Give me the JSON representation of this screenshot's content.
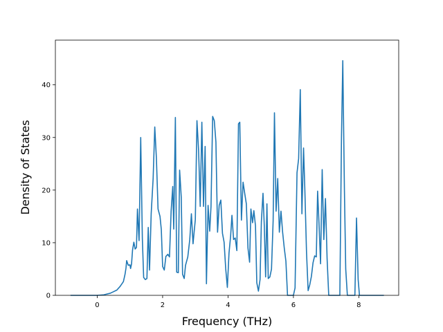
{
  "chart_data": {
    "type": "line",
    "title": "",
    "xlabel": "Frequency (THz)",
    "ylabel": "Density of States",
    "xlim": [
      -1.28,
      9.22
    ],
    "ylim": [
      0,
      48.5
    ],
    "x_ticks": [
      0,
      2,
      4,
      6,
      8
    ],
    "y_ticks": [
      0,
      10,
      20,
      30,
      40
    ],
    "grid": false,
    "legend": "none",
    "series": [
      {
        "color": "#1f77b4",
        "points": [
          [
            -0.8,
            0
          ],
          [
            -0.4,
            0
          ],
          [
            0.0,
            0
          ],
          [
            0.2,
            0.1
          ],
          [
            0.4,
            0.4
          ],
          [
            0.5,
            0.7
          ],
          [
            0.6,
            1.0
          ],
          [
            0.7,
            1.7
          ],
          [
            0.8,
            2.6
          ],
          [
            0.85,
            4.0
          ],
          [
            0.88,
            5.2
          ],
          [
            0.9,
            6.6
          ],
          [
            0.95,
            5.7
          ],
          [
            1.0,
            5.8
          ],
          [
            1.02,
            5.1
          ],
          [
            1.05,
            6.0
          ],
          [
            1.08,
            8.6
          ],
          [
            1.12,
            10.1
          ],
          [
            1.16,
            8.8
          ],
          [
            1.2,
            9.1
          ],
          [
            1.23,
            16.4
          ],
          [
            1.28,
            10.4
          ],
          [
            1.33,
            30.0
          ],
          [
            1.38,
            10.8
          ],
          [
            1.42,
            3.4
          ],
          [
            1.47,
            3.0
          ],
          [
            1.52,
            3.2
          ],
          [
            1.56,
            12.9
          ],
          [
            1.6,
            4.8
          ],
          [
            1.65,
            15.5
          ],
          [
            1.71,
            22.2
          ],
          [
            1.76,
            32.0
          ],
          [
            1.81,
            26.0
          ],
          [
            1.86,
            16.4
          ],
          [
            1.92,
            15.0
          ],
          [
            1.96,
            12.5
          ],
          [
            2.0,
            5.5
          ],
          [
            2.05,
            4.8
          ],
          [
            2.1,
            7.4
          ],
          [
            2.16,
            7.8
          ],
          [
            2.21,
            7.3
          ],
          [
            2.26,
            16.0
          ],
          [
            2.31,
            20.7
          ],
          [
            2.34,
            12.6
          ],
          [
            2.39,
            33.8
          ],
          [
            2.43,
            4.4
          ],
          [
            2.48,
            4.3
          ],
          [
            2.52,
            23.8
          ],
          [
            2.57,
            18.6
          ],
          [
            2.61,
            4.0
          ],
          [
            2.66,
            3.2
          ],
          [
            2.7,
            5.7
          ],
          [
            2.77,
            7.3
          ],
          [
            2.83,
            10.6
          ],
          [
            2.88,
            15.5
          ],
          [
            2.93,
            9.8
          ],
          [
            3.0,
            14.4
          ],
          [
            3.05,
            33.2
          ],
          [
            3.1,
            27.6
          ],
          [
            3.15,
            16.9
          ],
          [
            3.2,
            32.9
          ],
          [
            3.25,
            16.9
          ],
          [
            3.3,
            28.3
          ],
          [
            3.34,
            2.2
          ],
          [
            3.39,
            17.1
          ],
          [
            3.44,
            12.2
          ],
          [
            3.48,
            16.9
          ],
          [
            3.53,
            34.0
          ],
          [
            3.58,
            33.2
          ],
          [
            3.63,
            29.1
          ],
          [
            3.68,
            12.0
          ],
          [
            3.73,
            17.1
          ],
          [
            3.78,
            18.1
          ],
          [
            3.83,
            11.8
          ],
          [
            3.88,
            10.1
          ],
          [
            3.93,
            5.0
          ],
          [
            3.98,
            1.5
          ],
          [
            4.03,
            8.0
          ],
          [
            4.08,
            11.3
          ],
          [
            4.12,
            15.2
          ],
          [
            4.17,
            10.6
          ],
          [
            4.22,
            10.9
          ],
          [
            4.27,
            8.5
          ],
          [
            4.32,
            32.6
          ],
          [
            4.36,
            32.9
          ],
          [
            4.41,
            14.3
          ],
          [
            4.46,
            21.5
          ],
          [
            4.51,
            19.4
          ],
          [
            4.56,
            17.4
          ],
          [
            4.61,
            9.0
          ],
          [
            4.66,
            6.3
          ],
          [
            4.7,
            16.4
          ],
          [
            4.75,
            13.8
          ],
          [
            4.79,
            16.1
          ],
          [
            4.84,
            13.2
          ],
          [
            4.88,
            2.4
          ],
          [
            4.93,
            0.8
          ],
          [
            4.98,
            3.0
          ],
          [
            5.02,
            14.0
          ],
          [
            5.07,
            19.4
          ],
          [
            5.11,
            13.1
          ],
          [
            5.15,
            3.5
          ],
          [
            5.19,
            17.4
          ],
          [
            5.23,
            3.2
          ],
          [
            5.28,
            3.5
          ],
          [
            5.33,
            5.0
          ],
          [
            5.38,
            14.2
          ],
          [
            5.42,
            34.7
          ],
          [
            5.47,
            16.0
          ],
          [
            5.52,
            22.2
          ],
          [
            5.57,
            12.0
          ],
          [
            5.62,
            16.0
          ],
          [
            5.67,
            12.0
          ],
          [
            5.72,
            9.0
          ],
          [
            5.77,
            6.5
          ],
          [
            5.82,
            0
          ],
          [
            5.9,
            0
          ],
          [
            6.0,
            0
          ],
          [
            6.05,
            1.4
          ],
          [
            6.11,
            23.3
          ],
          [
            6.16,
            26.0
          ],
          [
            6.21,
            39.1
          ],
          [
            6.26,
            15.5
          ],
          [
            6.31,
            28.0
          ],
          [
            6.35,
            20.0
          ],
          [
            6.4,
            8.3
          ],
          [
            6.45,
            0.9
          ],
          [
            6.5,
            2.0
          ],
          [
            6.55,
            3.6
          ],
          [
            6.6,
            6.2
          ],
          [
            6.65,
            7.5
          ],
          [
            6.7,
            7.3
          ],
          [
            6.74,
            19.8
          ],
          [
            6.79,
            12.6
          ],
          [
            6.83,
            6.0
          ],
          [
            6.88,
            23.9
          ],
          [
            6.93,
            10.6
          ],
          [
            6.98,
            18.4
          ],
          [
            7.03,
            7.0
          ],
          [
            7.08,
            0
          ],
          [
            7.2,
            0
          ],
          [
            7.3,
            0
          ],
          [
            7.42,
            0
          ],
          [
            7.47,
            30.0
          ],
          [
            7.51,
            44.6
          ],
          [
            7.56,
            20.0
          ],
          [
            7.6,
            5.0
          ],
          [
            7.65,
            0
          ],
          [
            7.8,
            0
          ],
          [
            7.88,
            0
          ],
          [
            7.93,
            14.7
          ],
          [
            7.98,
            3.0
          ],
          [
            8.02,
            0
          ],
          [
            8.2,
            0
          ],
          [
            8.5,
            0
          ],
          [
            8.75,
            0
          ]
        ]
      }
    ]
  }
}
